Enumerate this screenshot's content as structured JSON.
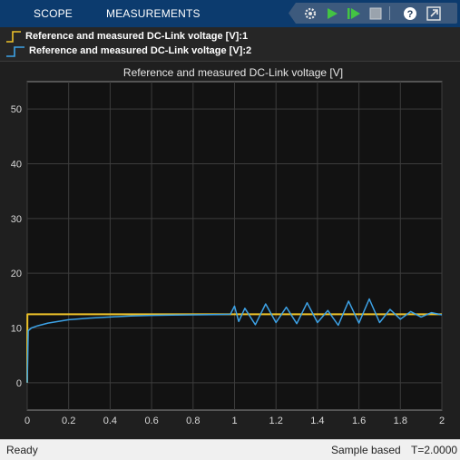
{
  "tabs": {
    "scope": "SCOPE",
    "measurements": "MEASUREMENTS"
  },
  "toolbar": {
    "icons": [
      "settings-icon",
      "run-icon",
      "step-forward-icon",
      "stop-icon",
      "help-icon",
      "undock-icon"
    ]
  },
  "legend": {
    "items": [
      {
        "label": "Reference and measured DC-Link voltage [V]:1",
        "color": "#edc22a"
      },
      {
        "label": "Reference and measured DC-Link voltage [V]:2",
        "color": "#3da2e6"
      }
    ]
  },
  "status": {
    "left": "Ready",
    "mode": "Sample based",
    "time": "T=2.0000"
  },
  "colors": {
    "tabbar": "#0c3b6e",
    "plot_bg": "#121212",
    "grid": "#3c3c3c",
    "axes": "#8c8c8c"
  },
  "chart_data": {
    "type": "line",
    "title": "Reference and measured DC-Link voltage [V]",
    "xlabel": "",
    "ylabel": "",
    "xlim": [
      0,
      2
    ],
    "ylim": [
      -5,
      55
    ],
    "xticks": [
      0,
      0.2,
      0.4,
      0.6,
      0.8,
      1,
      1.2,
      1.4,
      1.6,
      1.8,
      2
    ],
    "yticks": [
      0,
      10,
      20,
      30,
      40,
      50
    ],
    "grid": true,
    "series": [
      {
        "name": "Reference and measured DC-Link voltage [V]:1",
        "color": "#edc22a",
        "x": [
          0,
          0.001,
          2
        ],
        "y": [
          0,
          12.5,
          12.5
        ]
      },
      {
        "name": "Reference and measured DC-Link voltage [V]:2",
        "color": "#3da2e6",
        "x": [
          0,
          0.005,
          0.02,
          0.05,
          0.1,
          0.15,
          0.2,
          0.3,
          0.4,
          0.5,
          0.6,
          0.7,
          0.8,
          0.9,
          0.98,
          1.0,
          1.02,
          1.05,
          1.1,
          1.15,
          1.2,
          1.25,
          1.3,
          1.35,
          1.4,
          1.45,
          1.5,
          1.55,
          1.6,
          1.65,
          1.7,
          1.75,
          1.8,
          1.85,
          1.9,
          1.95,
          2.0
        ],
        "y": [
          0,
          9.5,
          10.0,
          10.4,
          10.9,
          11.2,
          11.5,
          11.8,
          12.0,
          12.2,
          12.3,
          12.35,
          12.4,
          12.45,
          12.5,
          14.0,
          11.2,
          13.6,
          10.6,
          14.4,
          11.0,
          13.8,
          10.8,
          14.6,
          11.0,
          13.2,
          10.5,
          14.9,
          10.9,
          15.3,
          11.0,
          13.4,
          11.6,
          13.0,
          12.0,
          12.8,
          12.4
        ]
      }
    ]
  }
}
